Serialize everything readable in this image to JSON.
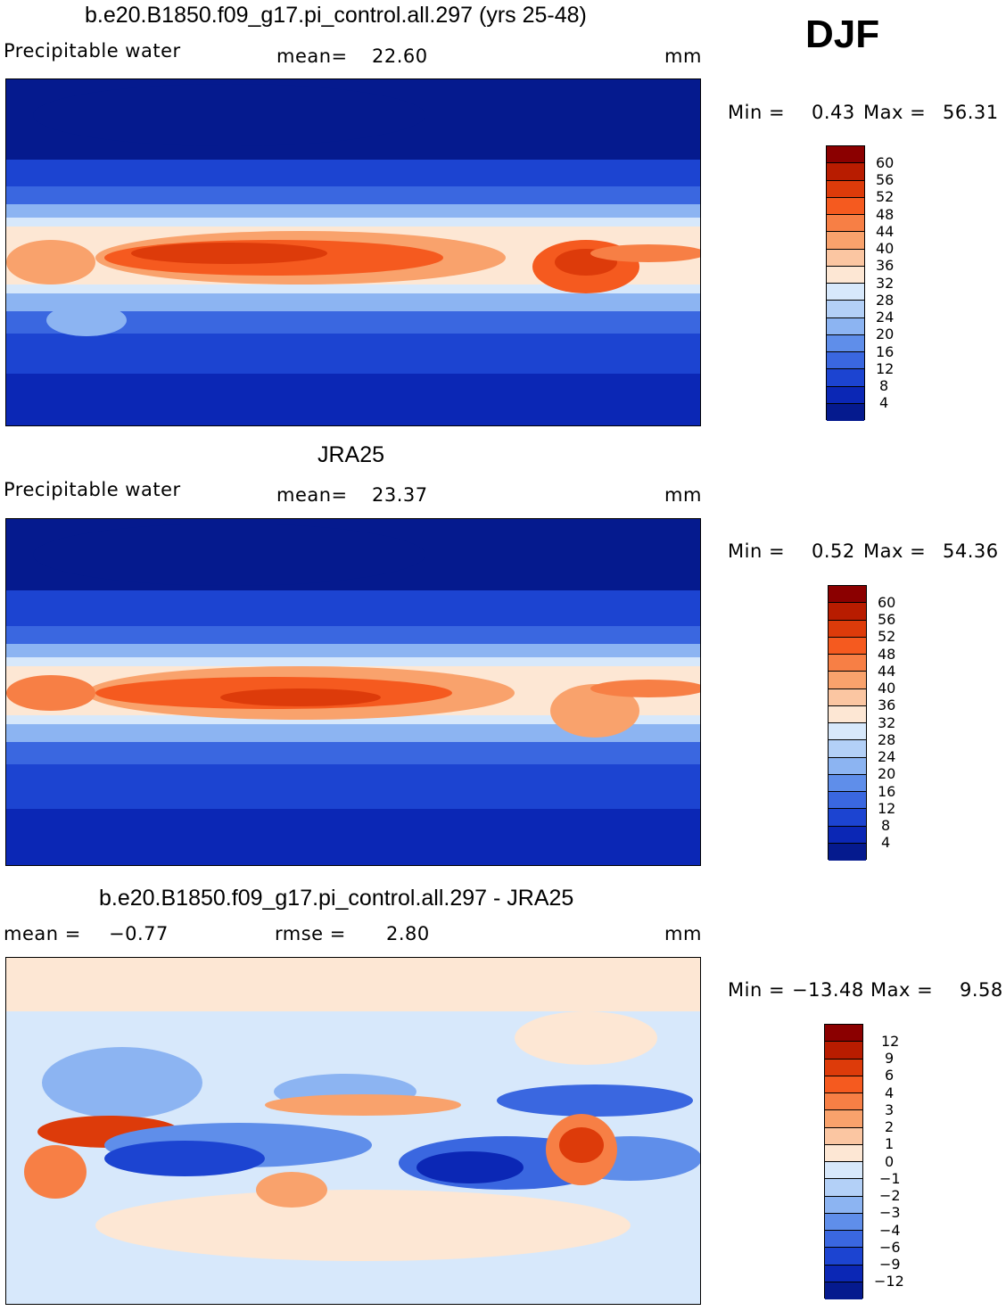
{
  "season": "DJF",
  "panels": [
    {
      "title": "b.e20.B1850.f09_g17.pi_control.all.297 (yrs 25-48)",
      "left_label": "Precipitable water",
      "mid_label": "mean=",
      "mid_value": "22.60",
      "units": "mm",
      "min_label": "Min =",
      "min_value": "0.43",
      "max_label": "Max =",
      "max_value": "56.31",
      "colorbar_levels": [
        "60",
        "56",
        "52",
        "48",
        "44",
        "40",
        "36",
        "32",
        "28",
        "24",
        "20",
        "16",
        "12",
        "8",
        "4"
      ]
    },
    {
      "title": "JRA25",
      "left_label": "Precipitable water",
      "mid_label": "mean=",
      "mid_value": "23.37",
      "units": "mm",
      "min_label": "Min =",
      "min_value": "0.52",
      "max_label": "Max =",
      "max_value": "54.36",
      "colorbar_levels": [
        "60",
        "56",
        "52",
        "48",
        "44",
        "40",
        "36",
        "32",
        "28",
        "24",
        "20",
        "16",
        "12",
        "8",
        "4"
      ]
    },
    {
      "title": "b.e20.B1850.f09_g17.pi_control.all.297 - JRA25",
      "left_label": "mean =",
      "left_value": "−0.77",
      "mid_label": "rmse =",
      "mid_value": "2.80",
      "units": "mm",
      "min_label": "Min =",
      "min_value": "−13.48",
      "max_label": "Max =",
      "max_value": "9.58",
      "colorbar_levels": [
        "12",
        "9",
        "6",
        "4",
        "3",
        "2",
        "1",
        "0",
        "−1",
        "−2",
        "−3",
        "−4",
        "−6",
        "−9",
        "−12"
      ]
    }
  ],
  "colors": {
    "abs_scale": [
      "#8b0000",
      "#b81c00",
      "#dd3b0a",
      "#f55a1f",
      "#f77f45",
      "#f9a26c",
      "#fbc6a2",
      "#fde7d4",
      "#d7e8fb",
      "#b3d0f7",
      "#8cb4f2",
      "#5f8eea",
      "#3a67e0",
      "#1c44d1",
      "#0b27b5",
      "#051a8e"
    ],
    "diff_scale": [
      "#8b0000",
      "#b81c00",
      "#dd3b0a",
      "#f55a1f",
      "#f77f45",
      "#f9a26c",
      "#fbc6a2",
      "#fde7d4",
      "#d7e8fb",
      "#b3d0f7",
      "#8cb4f2",
      "#5f8eea",
      "#3a67e0",
      "#1c44d1",
      "#0b27b5",
      "#051a8e"
    ]
  }
}
